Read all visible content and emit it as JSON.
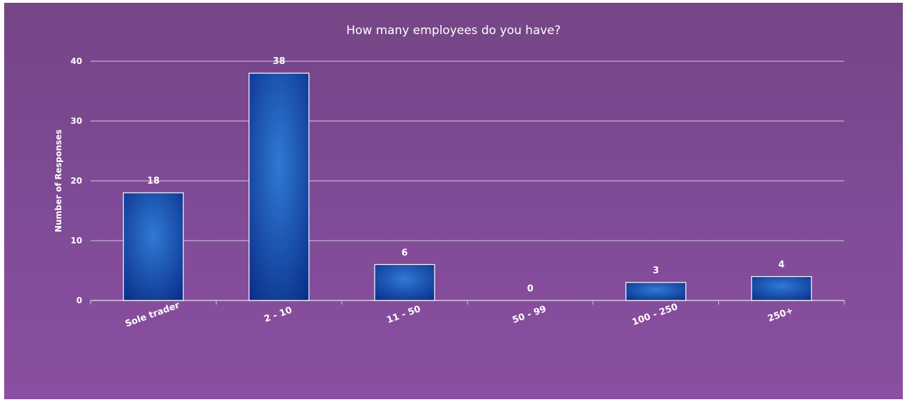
{
  "chart_data": {
    "type": "bar",
    "title": "How many employees do you have?",
    "xlabel": "",
    "ylabel": "Number of Responses",
    "categories": [
      "Sole trader",
      "2 - 10",
      "11 - 50",
      "50 - 99",
      "100 - 250",
      "250+"
    ],
    "values": [
      18,
      38,
      6,
      0,
      3,
      4
    ],
    "ylim": [
      0,
      40
    ],
    "yticks": [
      0,
      10,
      20,
      30,
      40
    ],
    "grid": true,
    "legend": "none",
    "colors": {
      "background": "#7d4a93",
      "bar_center": "#2f7ad6",
      "bar_edge": "#0a2f8a",
      "gridline": "#d9c7e3",
      "text": "#ffffff"
    }
  }
}
